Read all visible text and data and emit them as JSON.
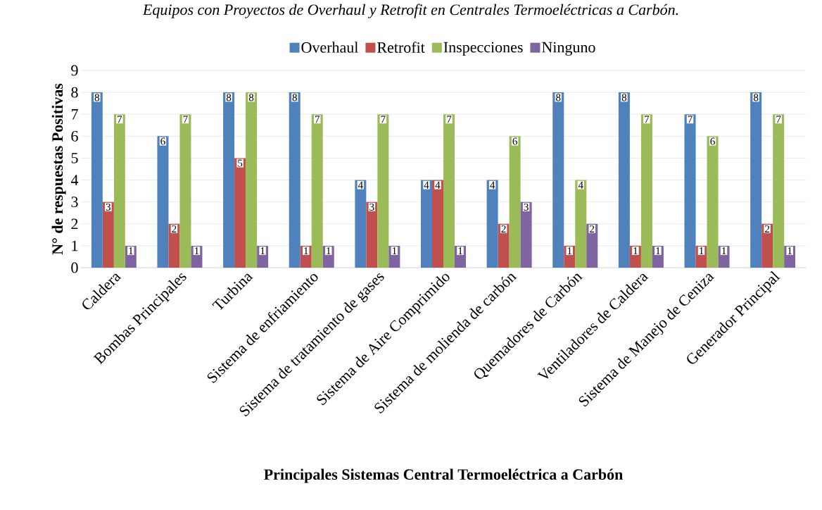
{
  "chart_data": {
    "type": "bar",
    "title": "Equipos con Proyectos de Overhaul y Retrofit en Centrales Termoeléctricas a Carbón.",
    "xlabel": "Principales Sistemas Central Termoeléctrica a Carbón",
    "ylabel": "N° de respuestas Positivas",
    "categories": [
      "Caldera",
      "Bombas Principales",
      "Turbina",
      "Sistema de enfriamiento",
      "Sistema de tratamiento de gases",
      "Sistema de Aire Comprimido",
      "Sistema de molienda de carbón",
      "Quemadores de Carbón",
      "Ventiladores de Caldera",
      "Sistema de Manejo de Ceniza",
      "Generador Principal"
    ],
    "series": [
      {
        "name": "Overhaul",
        "color": "#4f81bd",
        "values": [
          8,
          6,
          8,
          8,
          4,
          4,
          4,
          8,
          8,
          7,
          8
        ]
      },
      {
        "name": "Retrofit",
        "color": "#c0504d",
        "values": [
          3,
          2,
          5,
          1,
          3,
          4,
          2,
          1,
          1,
          1,
          2
        ]
      },
      {
        "name": "Inspecciones",
        "color": "#9bbb59",
        "values": [
          7,
          7,
          8,
          7,
          7,
          7,
          6,
          4,
          7,
          6,
          7
        ]
      },
      {
        "name": "Ninguno",
        "color": "#8064a2",
        "values": [
          1,
          1,
          1,
          1,
          1,
          1,
          3,
          2,
          1,
          1,
          1
        ]
      }
    ],
    "ylim": [
      0,
      9
    ],
    "yticks": [
      0,
      1,
      2,
      3,
      4,
      5,
      6,
      7,
      8,
      9
    ],
    "grid": "y",
    "legend": "top",
    "data_labels": true
  }
}
